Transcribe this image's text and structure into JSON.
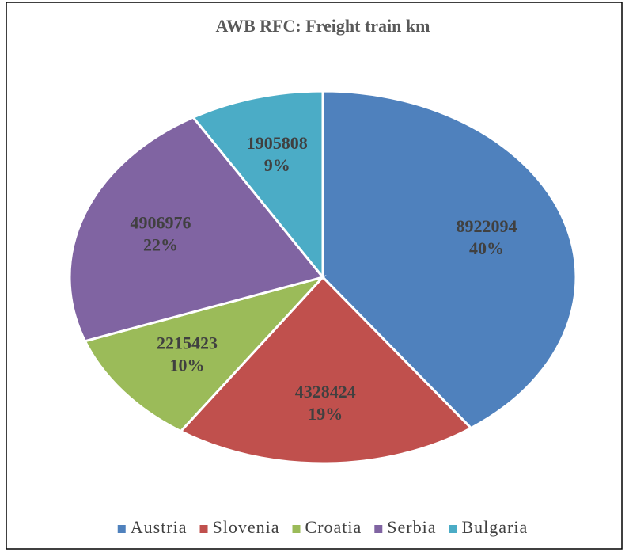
{
  "chart_data": {
    "type": "pie",
    "title": "AWB RFC: Freight train km",
    "categories": [
      "Austria",
      "Slovenia",
      "Croatia",
      "Serbia",
      "Bulgaria"
    ],
    "values": [
      8922094,
      4328424,
      2215423,
      4906976,
      1905808
    ],
    "percent_labels": [
      "40%",
      "19%",
      "10%",
      "22%",
      "9%"
    ],
    "colors": [
      "#4f81bd",
      "#c0504d",
      "#9bbb59",
      "#8064a2",
      "#4bacc6"
    ],
    "legend": "bottom"
  }
}
